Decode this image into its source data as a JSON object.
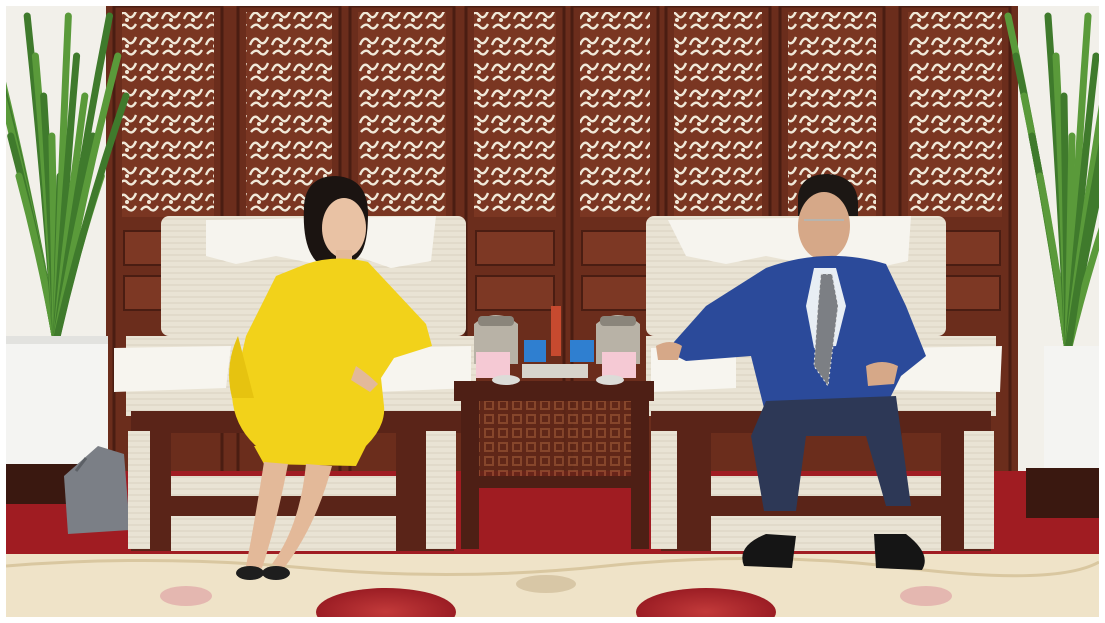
{
  "photo": {
    "scene": "meeting-room",
    "colors": {
      "screen_wood": "#6b2d1c",
      "carpet_red": "#a01c22",
      "rug_cream": "#efe3c8",
      "chair_cream": "#e8e1d1",
      "chair_wood": "#5a2418",
      "yellow_dress": "#f2d21a",
      "blue_suit": "#2b4a9a",
      "trousers": "#2d3856",
      "plant_green": "#3f7a2c",
      "pot_white": "#f4f4f2"
    }
  }
}
